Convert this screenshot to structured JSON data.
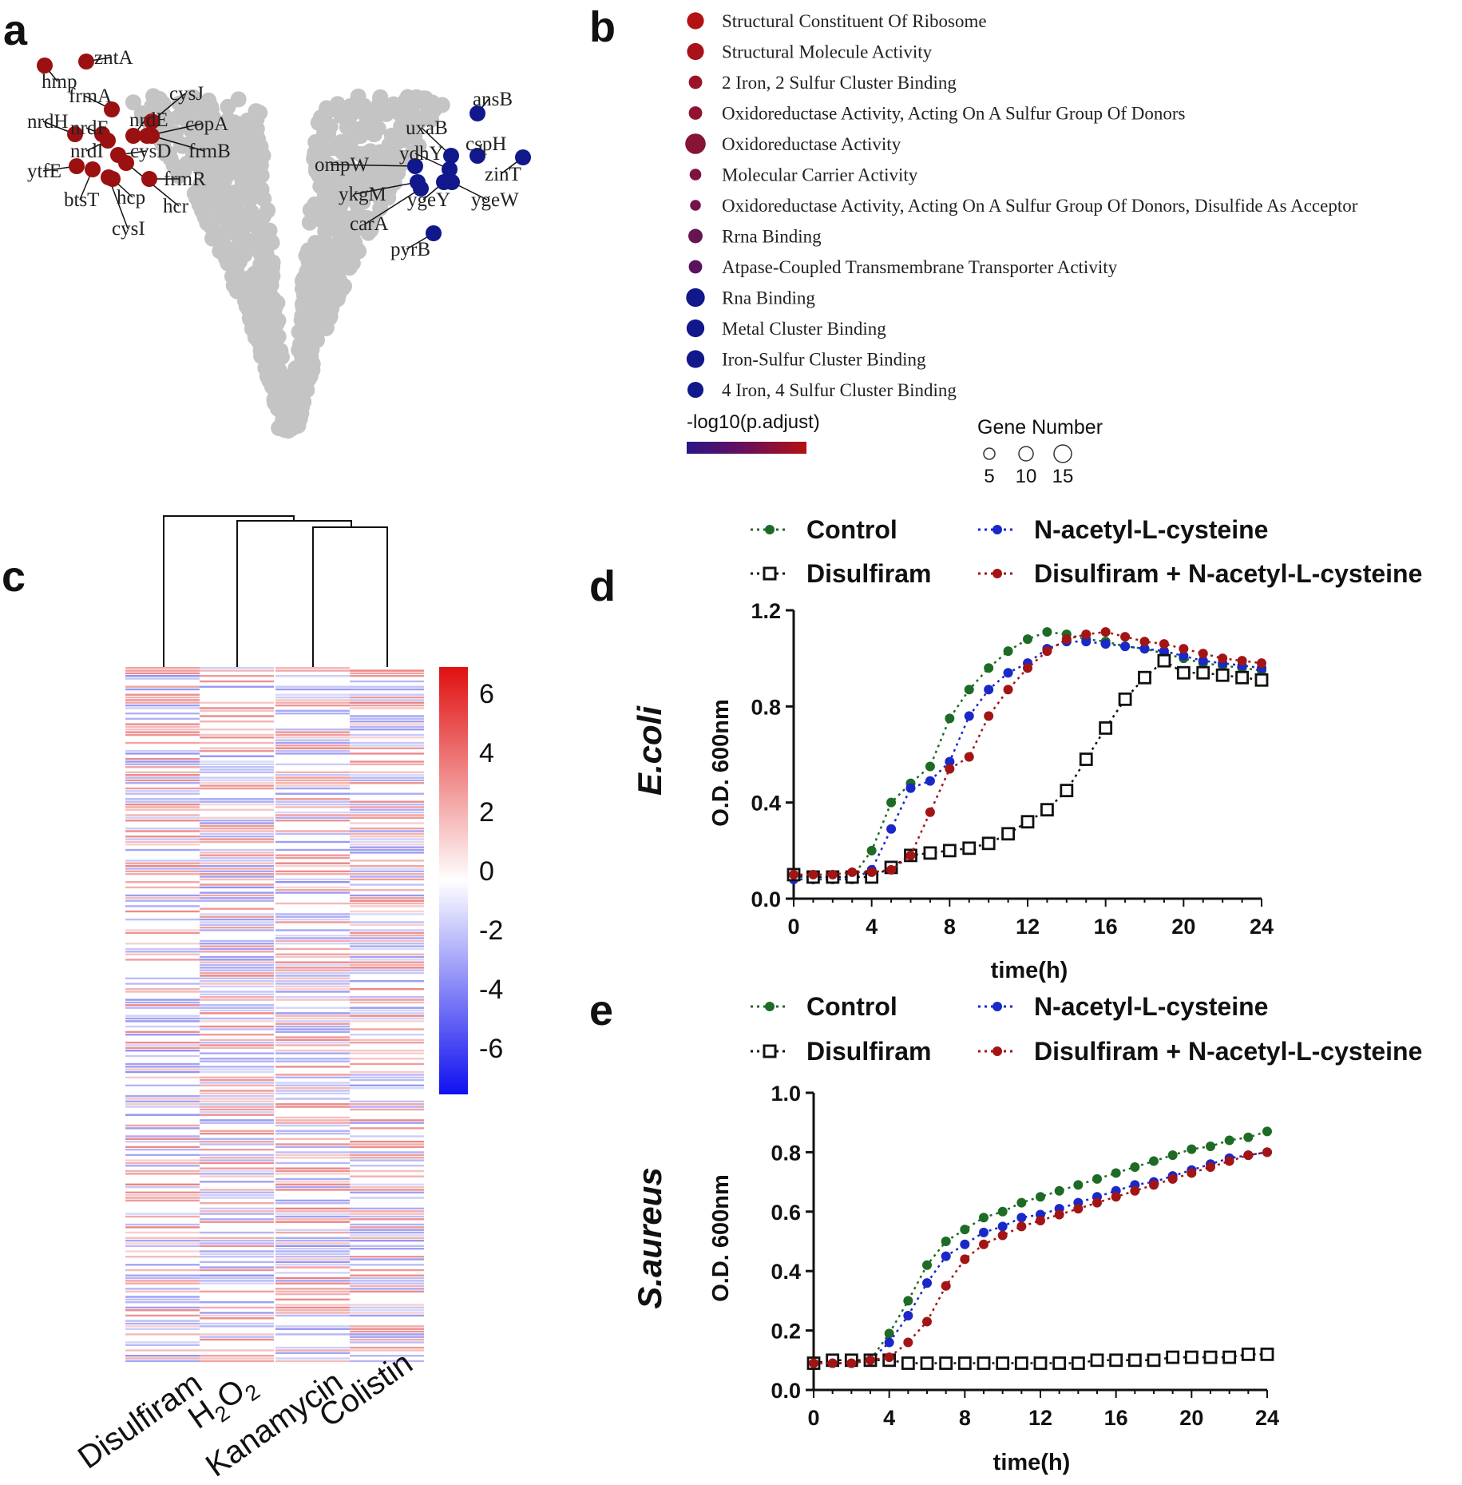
{
  "panels": {
    "a": "a",
    "b": "b",
    "c": "c",
    "d": "d",
    "e": "e"
  },
  "colors": {
    "up": "#9b1010",
    "down": "#10188c",
    "ns": "#c4c4c4",
    "control": "#1e6b26",
    "nac": "#1a28c8",
    "combo": "#a31414",
    "disulfiram": "#111111"
  },
  "chart_data": [
    {
      "id": "volcano",
      "type": "scatter",
      "title": "",
      "up_genes": [
        "zntA",
        "hmp",
        "frmA",
        "cysJ",
        "nrdH",
        "nrdF",
        "nrdE",
        "copA",
        "nrdI",
        "cysD",
        "frmB",
        "ytfE",
        "frmR",
        "btsT",
        "hcp",
        "hcr",
        "cysI"
      ],
      "down_genes": [
        "ansB",
        "uxaB",
        "cspH",
        "ydhY",
        "ompW",
        "zinT",
        "ykgM",
        "ygeY",
        "ygeW",
        "carA",
        "pyrB"
      ]
    },
    {
      "id": "go_enrichment",
      "type": "scatter",
      "terms": [
        {
          "label": "Structural Constituent Of Ribosome",
          "p": 1.0,
          "genes": 12
        },
        {
          "label": "Structural Molecule Activity",
          "p": 0.92,
          "genes": 12
        },
        {
          "label": "2 Iron, 2 Sulfur Cluster Binding",
          "p": 0.82,
          "genes": 8
        },
        {
          "label": "Oxidoreductase Activity, Acting On A Sulfur Group Of Donors",
          "p": 0.74,
          "genes": 8
        },
        {
          "label": "Oxidoreductase Activity",
          "p": 0.68,
          "genes": 16
        },
        {
          "label": "Molecular Carrier Activity",
          "p": 0.6,
          "genes": 6
        },
        {
          "label": "Oxidoreductase Activity, Acting On A Sulfur Group Of Donors, Disulfide As Acceptor",
          "p": 0.52,
          "genes": 5
        },
        {
          "label": "Rrna Binding",
          "p": 0.44,
          "genes": 9
        },
        {
          "label": "Atpase-Coupled Transmembrane Transporter Activity",
          "p": 0.34,
          "genes": 8
        },
        {
          "label": "Rna Binding",
          "p": 0.05,
          "genes": 14
        },
        {
          "label": "Metal Cluster Binding",
          "p": 0.05,
          "genes": 13
        },
        {
          "label": "Iron-Sulfur Cluster Binding",
          "p": 0.05,
          "genes": 13
        },
        {
          "label": "4 Iron, 4 Sulfur Cluster Binding",
          "p": 0.05,
          "genes": 11
        }
      ],
      "color_legend_title": "-log10(p.adjust)",
      "size_legend_title": "Gene Number",
      "size_legend_values": [
        "5",
        "10",
        "15"
      ]
    },
    {
      "id": "heatmap",
      "type": "heatmap",
      "columns": [
        "Disulfiram",
        "H2O2",
        "Kanamycin",
        "Colistin"
      ],
      "column_labels_display": {
        "h2o2_main": "H",
        "h2o2_sub1": "2",
        "h2o2_mid": "O",
        "h2o2_sub2": "2"
      },
      "colorbar_ticks": [
        "6",
        "4",
        "2",
        "0",
        "-2",
        "-4",
        "-6"
      ],
      "colorbar_range": [
        -7,
        7
      ]
    },
    {
      "id": "ecoli_growth",
      "type": "line",
      "organism": "E.coli",
      "xlabel": "time(h)",
      "ylabel": "O.D. 600nm",
      "xlim": [
        0,
        24
      ],
      "ylim": [
        0,
        1.2
      ],
      "xticks": [
        "0",
        "4",
        "8",
        "12",
        "16",
        "20",
        "24"
      ],
      "yticks": [
        "0.0",
        "0.4",
        "0.8",
        "1.2"
      ],
      "x": [
        0,
        1,
        2,
        3,
        4,
        5,
        6,
        7,
        8,
        9,
        10,
        11,
        12,
        13,
        14,
        15,
        16,
        17,
        18,
        19,
        20,
        21,
        22,
        23,
        24
      ],
      "series": [
        {
          "name": "Control",
          "key": "control",
          "marker": "dot",
          "values": [
            0.09,
            0.09,
            0.09,
            0.09,
            0.2,
            0.4,
            0.48,
            0.55,
            0.75,
            0.87,
            0.96,
            1.03,
            1.08,
            1.11,
            1.1,
            1.08,
            1.07,
            1.05,
            1.04,
            1.02,
            1.0,
            0.98,
            0.97,
            0.96,
            0.95
          ]
        },
        {
          "name": "N-acetyl-L-cysteine",
          "key": "nac",
          "marker": "dot",
          "values": [
            0.08,
            0.08,
            0.08,
            0.08,
            0.12,
            0.29,
            0.46,
            0.49,
            0.57,
            0.76,
            0.87,
            0.94,
            0.98,
            1.04,
            1.07,
            1.07,
            1.06,
            1.05,
            1.04,
            1.03,
            1.01,
            0.99,
            0.98,
            0.97,
            0.96
          ]
        },
        {
          "name": "Disulfiram",
          "key": "disulfiram",
          "marker": "open-square",
          "values": [
            0.1,
            0.09,
            0.09,
            0.09,
            0.09,
            0.13,
            0.18,
            0.19,
            0.2,
            0.21,
            0.23,
            0.27,
            0.32,
            0.37,
            0.45,
            0.58,
            0.71,
            0.83,
            0.92,
            0.99,
            0.94,
            0.94,
            0.93,
            0.92,
            0.91
          ]
        },
        {
          "name": "Disulfiram + N-acetyl-L-cysteine",
          "key": "combo",
          "marker": "dot",
          "values": [
            0.1,
            0.1,
            0.1,
            0.11,
            0.11,
            0.12,
            0.18,
            0.36,
            0.54,
            0.59,
            0.76,
            0.87,
            0.96,
            1.03,
            1.08,
            1.1,
            1.11,
            1.09,
            1.07,
            1.06,
            1.04,
            1.02,
            1.0,
            0.99,
            0.98
          ]
        }
      ]
    },
    {
      "id": "saureus_growth",
      "type": "line",
      "organism": "S.aureus",
      "xlabel": "time(h)",
      "ylabel": "O.D. 600nm",
      "xlim": [
        0,
        24
      ],
      "ylim": [
        0,
        1.0
      ],
      "xticks": [
        "0",
        "4",
        "8",
        "12",
        "16",
        "20",
        "24"
      ],
      "yticks": [
        "0.0",
        "0.2",
        "0.4",
        "0.6",
        "0.8",
        "1.0"
      ],
      "x": [
        0,
        1,
        2,
        3,
        4,
        5,
        6,
        7,
        8,
        9,
        10,
        11,
        12,
        13,
        14,
        15,
        16,
        17,
        18,
        19,
        20,
        21,
        22,
        23,
        24
      ],
      "series": [
        {
          "name": "Control",
          "key": "control",
          "marker": "dot",
          "values": [
            0.09,
            0.09,
            0.09,
            0.1,
            0.19,
            0.3,
            0.42,
            0.5,
            0.54,
            0.58,
            0.6,
            0.63,
            0.65,
            0.67,
            0.69,
            0.71,
            0.73,
            0.75,
            0.77,
            0.79,
            0.81,
            0.82,
            0.84,
            0.85,
            0.87
          ]
        },
        {
          "name": "N-acetyl-L-cysteine",
          "key": "nac",
          "marker": "dot",
          "values": [
            0.09,
            0.09,
            0.09,
            0.1,
            0.16,
            0.25,
            0.36,
            0.45,
            0.49,
            0.53,
            0.55,
            0.58,
            0.59,
            0.61,
            0.63,
            0.65,
            0.67,
            0.69,
            0.7,
            0.72,
            0.74,
            0.76,
            0.78,
            0.79,
            0.8
          ]
        },
        {
          "name": "Disulfiram",
          "key": "disulfiram",
          "marker": "open-square",
          "values": [
            0.09,
            0.1,
            0.1,
            0.1,
            0.1,
            0.09,
            0.09,
            0.09,
            0.09,
            0.09,
            0.09,
            0.09,
            0.09,
            0.09,
            0.09,
            0.1,
            0.1,
            0.1,
            0.1,
            0.11,
            0.11,
            0.11,
            0.11,
            0.12,
            0.12
          ]
        },
        {
          "name": "Disulfiram + N-acetyl-L-cysteine",
          "key": "combo",
          "marker": "dot",
          "values": [
            0.09,
            0.09,
            0.09,
            0.1,
            0.11,
            0.16,
            0.23,
            0.35,
            0.44,
            0.49,
            0.52,
            0.55,
            0.57,
            0.59,
            0.61,
            0.63,
            0.65,
            0.67,
            0.69,
            0.71,
            0.73,
            0.75,
            0.77,
            0.79,
            0.8
          ]
        }
      ]
    }
  ]
}
